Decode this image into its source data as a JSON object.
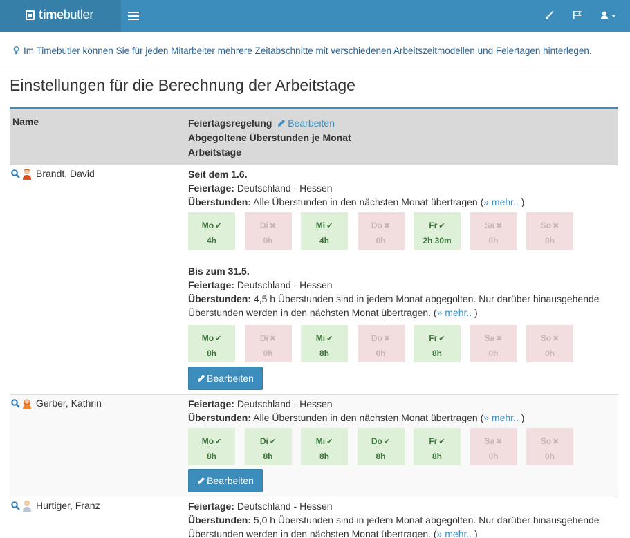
{
  "brand": {
    "bold": "time",
    "light": "butler"
  },
  "info": "Im Timebutler können Sie für jeden Mitarbeiter mehrere Zeitabschnitte mit verschiedenen Arbeitszeitmodellen und Feiertagen hinterlegen.",
  "page_title": "Einstellungen für die Berechnung der Arbeitstage",
  "header": {
    "name": "Name",
    "holiday_rule": "Feiertagsregelung",
    "edit_link": "Bearbeiten",
    "overtime_per_month": "Abgegoltene Überstunden je Monat",
    "workdays": "Arbeitstage"
  },
  "labels": {
    "holidays": "Feiertage:",
    "overtime": "Überstunden:",
    "more": "» mehr..",
    "edit_button": "Bearbeiten"
  },
  "colors": {
    "primary": "#3c8dbc",
    "day_on": "#dff0d8",
    "day_off": "#f2dede"
  },
  "employees": [
    {
      "name": "Brandt, David",
      "periods": [
        {
          "title": "Seit dem 1.6.",
          "holidays": "Deutschland - Hessen",
          "overtime": "Alle Überstunden in den nächsten Monat übertragen",
          "days": [
            {
              "d": "Mo",
              "h": "4h",
              "on": true
            },
            {
              "d": "Di",
              "h": "0h",
              "on": false
            },
            {
              "d": "Mi",
              "h": "4h",
              "on": true
            },
            {
              "d": "Do",
              "h": "0h",
              "on": false
            },
            {
              "d": "Fr",
              "h": "2h 30m",
              "on": true
            },
            {
              "d": "Sa",
              "h": "0h",
              "on": false
            },
            {
              "d": "So",
              "h": "0h",
              "on": false
            }
          ]
        },
        {
          "title": "Bis zum 31.5.",
          "holidays": "Deutschland - Hessen",
          "overtime_line1": "4,5 h Überstunden sind in jedem Monat abgegolten. Nur darüber hinausgehende",
          "overtime_line2": "Überstunden werden in den nächsten Monat übertragen.",
          "days": [
            {
              "d": "Mo",
              "h": "8h",
              "on": true
            },
            {
              "d": "Di",
              "h": "0h",
              "on": false
            },
            {
              "d": "Mi",
              "h": "8h",
              "on": true
            },
            {
              "d": "Do",
              "h": "0h",
              "on": false
            },
            {
              "d": "Fr",
              "h": "8h",
              "on": true
            },
            {
              "d": "Sa",
              "h": "0h",
              "on": false
            },
            {
              "d": "So",
              "h": "0h",
              "on": false
            }
          ]
        }
      ]
    },
    {
      "name": "Gerber, Kathrin",
      "periods": [
        {
          "holidays": "Deutschland - Hessen",
          "overtime": "Alle Überstunden in den nächsten Monat übertragen",
          "days": [
            {
              "d": "Mo",
              "h": "8h",
              "on": true
            },
            {
              "d": "Di",
              "h": "8h",
              "on": true
            },
            {
              "d": "Mi",
              "h": "8h",
              "on": true
            },
            {
              "d": "Do",
              "h": "8h",
              "on": true
            },
            {
              "d": "Fr",
              "h": "8h",
              "on": true
            },
            {
              "d": "Sa",
              "h": "0h",
              "on": false
            },
            {
              "d": "So",
              "h": "0h",
              "on": false
            }
          ]
        }
      ]
    },
    {
      "name": "Hurtiger, Franz",
      "periods": [
        {
          "holidays": "Deutschland - Hessen",
          "overtime_line1": "5,0 h Überstunden sind in jedem Monat abgegolten. Nur darüber hinausgehende",
          "overtime_line2": "Überstunden werden in den nächsten Monat übertragen."
        }
      ]
    }
  ]
}
